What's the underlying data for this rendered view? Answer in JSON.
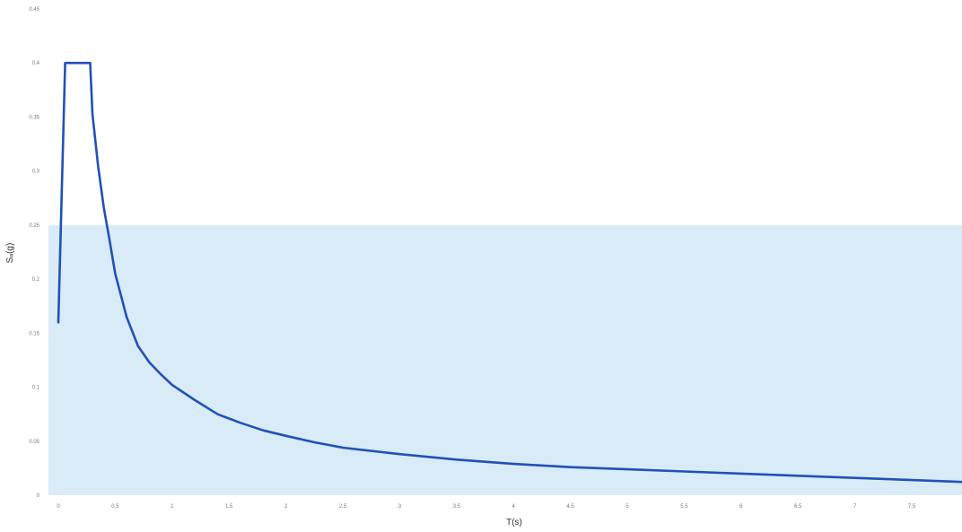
{
  "chart_data": {
    "type": "line",
    "title": "",
    "xlabel": "T(s)",
    "ylabel": "Sₐ(g)",
    "xlim": [
      -0.1,
      8.0
    ],
    "ylim": [
      0,
      0.45
    ],
    "xticks": [
      0,
      0.5,
      1,
      1.5,
      2,
      2.5,
      3,
      3.5,
      4,
      4.5,
      5,
      5.5,
      6,
      6.5,
      7,
      7.5
    ],
    "xtick_labels": [
      "0",
      "0.5",
      "1",
      "1.5",
      "2",
      "2.5",
      "3",
      "3.5",
      "4",
      "4.5",
      "5",
      "5.5",
      "6",
      "6.5",
      "7",
      "7.5"
    ],
    "yticks": [
      0,
      0.05,
      0.1,
      0.15,
      0.2,
      0.25,
      0.3,
      0.35,
      0.4,
      0.45
    ],
    "ytick_labels": [
      "0",
      "0.05",
      "0.1",
      "0.15",
      "0.2",
      "0.25",
      "0.3",
      "0.35",
      "0.4",
      "0.45"
    ],
    "grid": false,
    "band": {
      "y_from": 0,
      "y_to": 0.25,
      "x_from": -0.1,
      "x_to": 8.0
    },
    "colors": {
      "line": "#2151b8",
      "band": "#d9ebf6"
    },
    "series": [
      {
        "x": [
          0,
          0.06,
          0.1,
          0.2,
          0.28,
          0.3,
          0.35,
          0.4,
          0.45,
          0.5,
          0.6,
          0.7,
          0.8,
          0.9,
          1,
          1.2,
          1.4,
          1.6,
          1.8,
          2,
          2.25,
          2.5,
          3,
          3.5,
          4,
          4.5,
          5,
          5.5,
          6,
          6.5,
          7,
          7.5,
          8.0
        ],
        "y": [
          0.16,
          0.4,
          0.4,
          0.4,
          0.4,
          0.353,
          0.304,
          0.266,
          0.236,
          0.205,
          0.165,
          0.138,
          0.123,
          0.112,
          0.102,
          0.088,
          0.075,
          0.067,
          0.06,
          0.055,
          0.049,
          0.044,
          0.038,
          0.033,
          0.029,
          0.026,
          0.024,
          0.022,
          0.02,
          0.018,
          0.016,
          0.014,
          0.012
        ]
      }
    ]
  }
}
